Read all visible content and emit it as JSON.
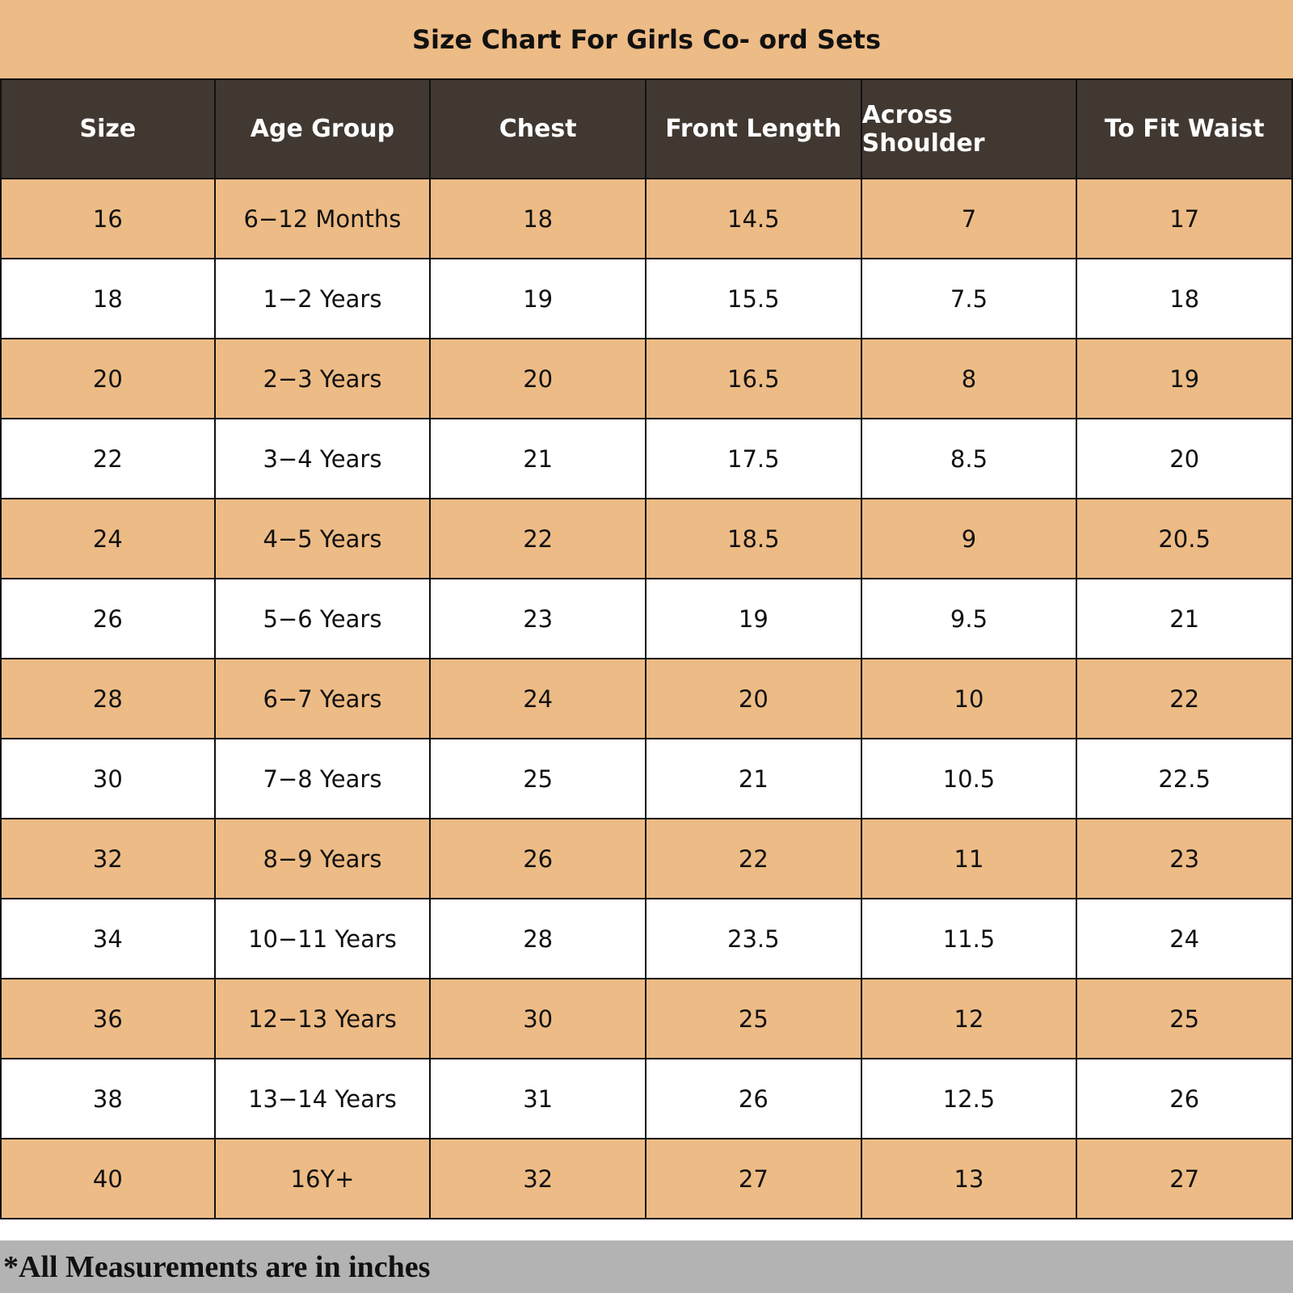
{
  "header": {
    "title": "Size Chart For Girls Co- ord Sets"
  },
  "table": {
    "columns": [
      "Size",
      "Age Group",
      "Chest",
      "Front Length",
      "Across Shoulder",
      "To Fit Waist"
    ],
    "rows": [
      [
        16,
        "6−12 Months",
        18,
        14.5,
        7,
        17
      ],
      [
        18,
        "1−2 Years",
        19,
        15.5,
        7.5,
        18
      ],
      [
        20,
        "2−3 Years",
        20,
        16.5,
        8,
        19
      ],
      [
        22,
        "3−4 Years",
        21,
        17.5,
        8.5,
        20
      ],
      [
        24,
        "4−5 Years",
        22,
        18.5,
        9,
        20.5
      ],
      [
        26,
        "5−6 Years",
        23,
        19,
        9.5,
        21
      ],
      [
        28,
        "6−7 Years",
        24,
        20,
        10,
        22
      ],
      [
        30,
        "7−8 Years",
        25,
        21,
        10.5,
        22.5
      ],
      [
        32,
        "8−9 Years",
        26,
        22,
        11,
        23
      ],
      [
        34,
        "10−11 Years",
        28,
        23.5,
        11.5,
        24
      ],
      [
        36,
        "12−13 Years",
        30,
        25,
        12,
        25
      ],
      [
        38,
        "13−14 Years",
        31,
        26,
        12.5,
        26
      ],
      [
        40,
        "16Y+",
        32,
        27,
        13,
        27
      ]
    ]
  },
  "footer": {
    "note": "*All Measurements are in inches"
  }
}
